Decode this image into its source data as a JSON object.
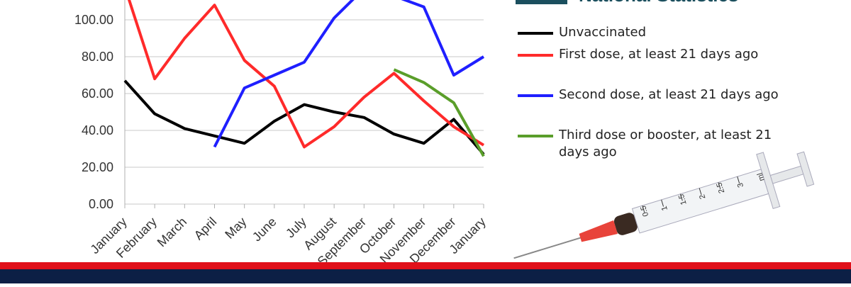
{
  "chart_data": {
    "type": "line",
    "categories": [
      "January",
      "February",
      "March",
      "April",
      "May",
      "June",
      "July",
      "August",
      "September",
      "October",
      "November",
      "December",
      "January"
    ],
    "series": [
      {
        "name": "Unvaccinated",
        "color": "#000000",
        "values": [
          67,
          49,
          41,
          37,
          33,
          45,
          54,
          50,
          47,
          38,
          33,
          46,
          27
        ]
      },
      {
        "name": "First dose, at least 21 days ago",
        "color": "#ff2a2a",
        "values": [
          118,
          68,
          90,
          108,
          78,
          64,
          31,
          42,
          58,
          71,
          56,
          42,
          32
        ]
      },
      {
        "name": "Second dose, at least 21 days ago",
        "color": "#1f1fff",
        "values": [
          null,
          null,
          null,
          31,
          63,
          70,
          77,
          101,
          117,
          113,
          107,
          70,
          80
        ]
      },
      {
        "name": "Third dose or booster, at least 21 days ago",
        "color": "#5a9e2a",
        "values": [
          null,
          null,
          null,
          null,
          null,
          null,
          null,
          null,
          null,
          73,
          66,
          55,
          26
        ]
      }
    ],
    "ylim": [
      0,
      120
    ],
    "yticks": [
      {
        "value": 0,
        "label": "0.00"
      },
      {
        "value": 20,
        "label": "20.00"
      },
      {
        "value": 40,
        "label": "40.00"
      },
      {
        "value": 60,
        "label": "60.00"
      },
      {
        "value": 80,
        "label": "80.00"
      },
      {
        "value": 100,
        "label": "100.00"
      }
    ],
    "grid": true
  },
  "logo": "National Statistics",
  "syringe": {
    "scale": [
      "0.5",
      "1",
      "1.5",
      "2",
      "2.5",
      "3"
    ],
    "unit": "ml"
  }
}
